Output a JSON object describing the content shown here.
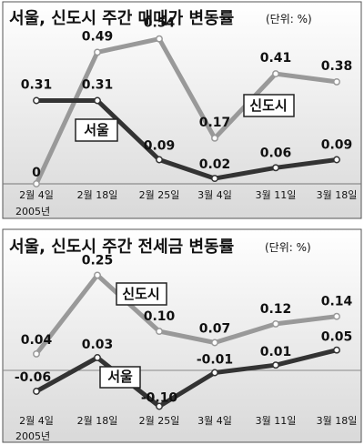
{
  "chart_data": [
    {
      "type": "line",
      "title": "서울, 신도시 주간 매매가 변동률",
      "unit": "(단위: %)",
      "categories": [
        "2월 4일",
        "2월 18일",
        "2월 25일",
        "3월 4일",
        "3월 11일",
        "3월 18일"
      ],
      "year_label": "2005년",
      "series": [
        {
          "name": "서울",
          "values": [
            0.31,
            0.31,
            0.09,
            0.02,
            0.06,
            0.09
          ]
        },
        {
          "name": "신도시",
          "values": [
            0,
            0.49,
            0.54,
            0.17,
            0.41,
            0.38
          ]
        }
      ],
      "value_labels": {
        "서울": [
          "0.31",
          "0.31",
          "0.09",
          "0.02",
          "0.06",
          "0.09"
        ],
        "신도시": [
          "0",
          "0.49",
          "0.54",
          "0.17",
          "0.41",
          "0.38"
        ]
      },
      "ylim": [
        0,
        0.6
      ]
    },
    {
      "type": "line",
      "title": "서울, 신도시 주간 전세금 변동률",
      "unit": "(단위: %)",
      "categories": [
        "2월 4일",
        "2월 18일",
        "2월 25일",
        "3월 4일",
        "3월 11일",
        "3월 18일"
      ],
      "year_label": "2005년",
      "series": [
        {
          "name": "서울",
          "values": [
            -0.06,
            0.03,
            -0.1,
            -0.01,
            0.01,
            0.05
          ]
        },
        {
          "name": "신도시",
          "values": [
            0.04,
            0.25,
            0.1,
            0.07,
            0.12,
            0.14
          ]
        }
      ],
      "value_labels": {
        "서울": [
          "-0.06",
          "0.03",
          "-0.10",
          "-0.01",
          "0.01",
          "0.05"
        ],
        "신도시": [
          "0.04",
          "0.25",
          "0.10",
          "0.07",
          "0.12",
          "0.14"
        ]
      },
      "ylim": [
        -0.14,
        0.28
      ]
    }
  ],
  "colors": {
    "seoul": "#333333",
    "newtown": "#999999",
    "panel_top": "#ffffff",
    "panel_bottom": "#d8d8d8",
    "frame": "#555555",
    "zero_line": "#888888"
  }
}
